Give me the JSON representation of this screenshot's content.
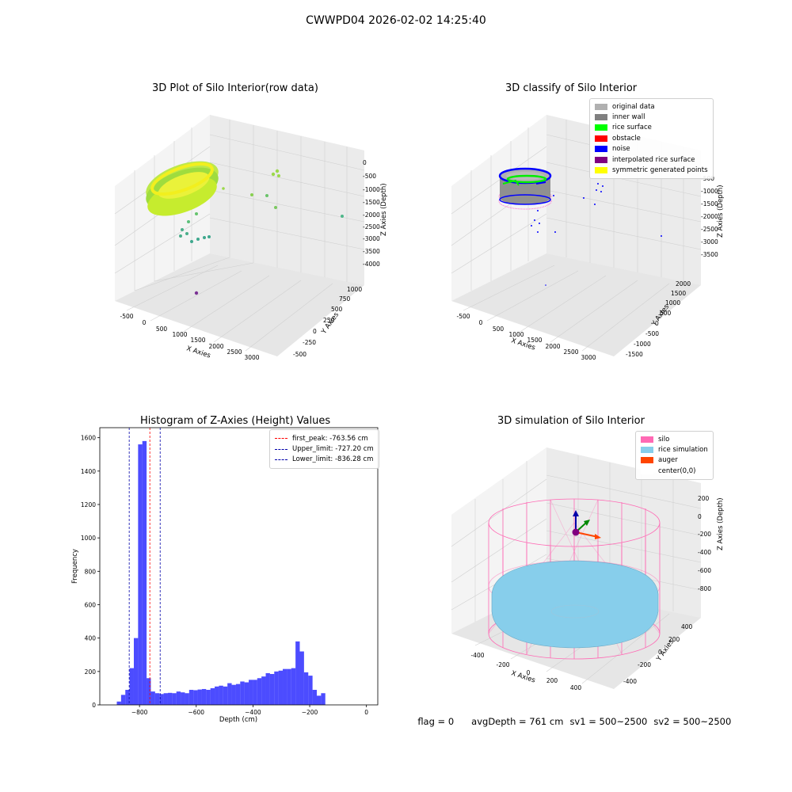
{
  "suptitle": "CWWPD04 2026-02-02 14:25:40",
  "plots": {
    "raw": {
      "title": "3D Plot of Silo Interior(row data)",
      "xlabel": "X Axies",
      "ylabel": "Y Axies",
      "zlabel": "Z Axies (Depth)",
      "xticks": [
        "-500",
        "0",
        "500",
        "1000",
        "1500",
        "2000",
        "2500",
        "3000"
      ],
      "yticks": [
        "-500",
        "-250",
        "0",
        "250",
        "500",
        "750",
        "1000"
      ],
      "zticks": [
        "0",
        "-500",
        "-1000",
        "-1500",
        "-2000",
        "-2500",
        "-3000",
        "-3500",
        "-4000"
      ]
    },
    "classify": {
      "title": "3D classify of Silo Interior",
      "xlabel": "X Axies",
      "ylabel": "Y Axies",
      "zlabel": "Z Axies (Depth)",
      "xticks": [
        "-500",
        "0",
        "500",
        "1000",
        "1500",
        "2000",
        "2500",
        "3000"
      ],
      "yticks": [
        "-1500",
        "-1000",
        "-500",
        "0",
        "500",
        "1000",
        "1500",
        "2000"
      ],
      "zticks": [
        "-500",
        "-1000",
        "-1500",
        "-2000",
        "-2500",
        "-3000",
        "-3500"
      ],
      "legend": [
        {
          "label": "original data",
          "color": "#b0b0b0"
        },
        {
          "label": "inner wall",
          "color": "#808080"
        },
        {
          "label": "rice surface",
          "color": "#00ff00"
        },
        {
          "label": "obstacle",
          "color": "#ff0000"
        },
        {
          "label": "noise",
          "color": "#0000ff"
        },
        {
          "label": "interpolated rice surface",
          "color": "#800080"
        },
        {
          "label": "symmetric generated points",
          "color": "#ffff00"
        }
      ]
    },
    "simulation": {
      "title": "3D simulation of Silo Interior",
      "xlabel": "X Axies",
      "ylabel": "Y Axies",
      "zlabel": "Z Axies (Depth)",
      "xticks": [
        "-400",
        "-200",
        "0",
        "200",
        "400"
      ],
      "yticks": [
        "-400",
        "-200",
        "0",
        "200",
        "400"
      ],
      "zticks": [
        "200",
        "0",
        "-200",
        "-400",
        "-600",
        "-800"
      ],
      "legend": [
        {
          "label": "silo",
          "color": "#ff69b4"
        },
        {
          "label": "rice simulation",
          "color": "#87ceeb"
        },
        {
          "label": "auger",
          "color": "#ff4500"
        },
        {
          "label": "center(0,0)",
          "color": "#ffffff"
        }
      ]
    }
  },
  "chart_data": {
    "type": "bar",
    "title": "Histogram of Z-Axies (Height) Values",
    "xlabel": "Depth (cm)",
    "ylabel": "Frequency",
    "xlim": [
      -940,
      40
    ],
    "ylim": [
      0,
      1660
    ],
    "bin_width": 15,
    "bin_start": -880,
    "values": [
      20,
      60,
      90,
      220,
      400,
      1560,
      1580,
      160,
      80,
      70,
      65,
      70,
      72,
      70,
      80,
      75,
      70,
      90,
      88,
      92,
      95,
      90,
      100,
      110,
      115,
      110,
      130,
      120,
      125,
      140,
      135,
      150,
      150,
      160,
      170,
      190,
      185,
      200,
      205,
      215,
      215,
      220,
      380,
      320,
      195,
      175,
      90,
      55,
      70
    ],
    "bar_color": "#0000ff",
    "xticks": [
      -800,
      -600,
      -400,
      -200,
      0
    ],
    "xtick_labels": [
      "−800",
      "−600",
      "−400",
      "−200",
      "0"
    ],
    "yticks": [
      0,
      200,
      400,
      600,
      800,
      1000,
      1200,
      1400,
      1600
    ],
    "vlines": [
      {
        "x": -763.56,
        "color": "#ff0000",
        "label": "first_peak: -763.56 cm"
      },
      {
        "x": -727.2,
        "color": "#0000aa",
        "label": "Upper_limit: -727.20 cm"
      },
      {
        "x": -836.28,
        "color": "#0000aa",
        "label": "Lower_limit: -836.28 cm"
      }
    ],
    "legend_position": "top-right"
  },
  "footer": {
    "flag": "flag = 0",
    "avg": "avgDepth = 761 cm",
    "sv1": "sv1 = 500~2500",
    "sv2": "sv2 = 500~2500"
  }
}
